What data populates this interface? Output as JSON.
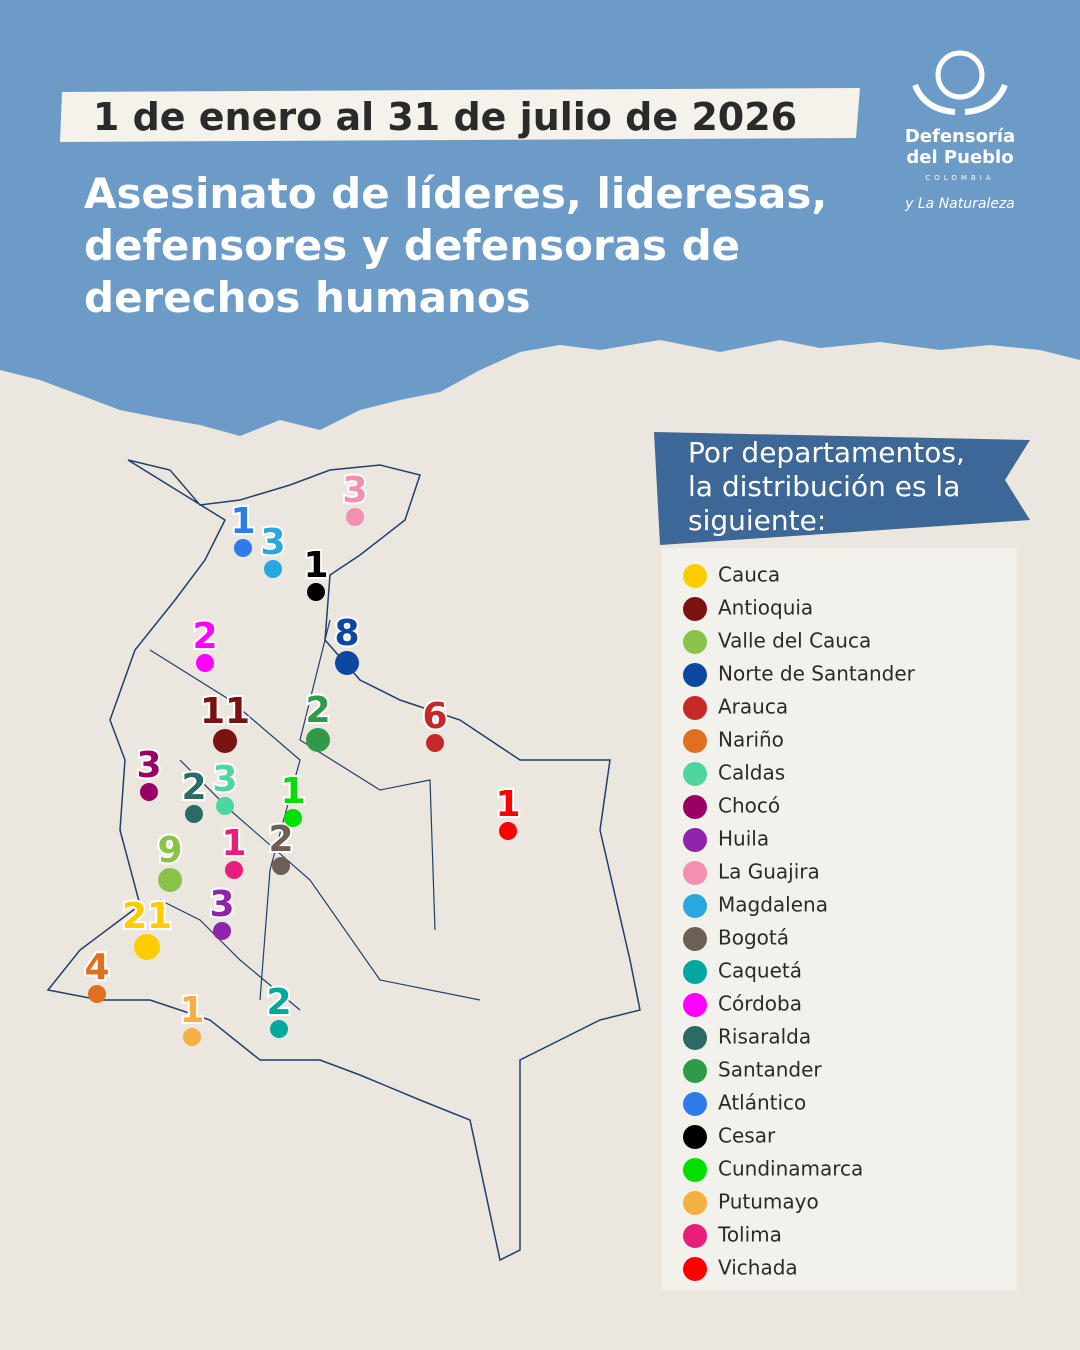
{
  "header": {
    "date": "1 de enero al 31 de julio de 2026",
    "title": [
      "Asesinato de líderes, lideresas,",
      "defensores y defensoras de",
      "derechos humanos"
    ]
  },
  "logo": {
    "name_line1": "Defensoría",
    "name_line2": "del Pueblo",
    "country": "COLOMBIA",
    "tagline": "y La Naturaleza"
  },
  "legend": {
    "heading": [
      "Por departamentos,",
      "la distribución es la",
      "siguiente:"
    ]
  },
  "departments": [
    {
      "name": "Cauca",
      "color": "#ffcc00",
      "count": 21
    },
    {
      "name": "Antioquia",
      "color": "#7a1212",
      "count": 11
    },
    {
      "name": "Valle del Cauca",
      "color": "#8bc34a",
      "count": 9
    },
    {
      "name": "Norte de Santander",
      "color": "#0d47a1",
      "count": 8
    },
    {
      "name": "Arauca",
      "color": "#c62828",
      "count": 6
    },
    {
      "name": "Nariño",
      "color": "#e07020",
      "count": 4
    },
    {
      "name": "Caldas",
      "color": "#4dd6a0",
      "count": 3
    },
    {
      "name": "Chocó",
      "color": "#990066",
      "count": 3
    },
    {
      "name": "Huila",
      "color": "#8e24aa",
      "count": 3
    },
    {
      "name": "La Guajira",
      "color": "#f48fb1",
      "count": 3
    },
    {
      "name": "Magdalena",
      "color": "#29a8e0",
      "count": 3
    },
    {
      "name": "Bogotá",
      "color": "#6d5f55",
      "count": 2
    },
    {
      "name": "Caquetá",
      "color": "#00a8a0",
      "count": 2
    },
    {
      "name": "Córdoba",
      "color": "#ff00ff",
      "count": 2
    },
    {
      "name": "Risaralda",
      "color": "#2a6b66",
      "count": 2
    },
    {
      "name": "Santander",
      "color": "#2e9a4a",
      "count": 2
    },
    {
      "name": "Atlántico",
      "color": "#2f7be8",
      "count": 1
    },
    {
      "name": "Cesar",
      "color": "#000000",
      "count": 1
    },
    {
      "name": "Cundinamarca",
      "color": "#00e000",
      "count": 1
    },
    {
      "name": "Putumayo",
      "color": "#f5b041",
      "count": 1
    },
    {
      "name": "Tolima",
      "color": "#e91e7a",
      "count": 1
    },
    {
      "name": "Vichada",
      "color": "#ff0000",
      "count": 1
    }
  ]
}
